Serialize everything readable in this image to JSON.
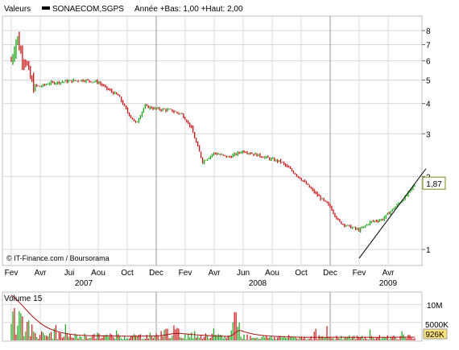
{
  "colors": {
    "background": "#ffffff",
    "frame": "#bfbfbf",
    "grid": "#d9d9d9",
    "year_separator": "#9a9a9a",
    "up_candle": "#1aa51a",
    "down_candle": "#cc1111",
    "trendline": "#000000",
    "volume_ma": "#a31313",
    "last_price_border": "#7a8a1a",
    "last_volume_bg": "#ffe27a"
  },
  "header": {
    "section_label": "Valeurs",
    "series_name": "SONAECOM,SGPS",
    "series_desc": "Année +Bas: 1,00 +Haut: 2,00"
  },
  "credit": "© IT-Finance.com / Boursorama",
  "last_price_label": "1,87",
  "volume_panel": {
    "title": "Volume 15",
    "ticks": [
      "10M",
      "5000K",
      "926K"
    ],
    "last_volume_label": "926K"
  },
  "chart_data": {
    "type": "candlestick",
    "title": "",
    "x_month_labels": [
      "Fev",
      "Avr",
      "Jui",
      "Aou",
      "Oct",
      "Dec",
      "Fev",
      "Avr",
      "Jun",
      "Aou",
      "Oct",
      "Dec",
      "Fev",
      "Avr"
    ],
    "x_year_labels": [
      "2007",
      "2008",
      "2009"
    ],
    "y_tick_labels": [
      "1",
      "2",
      "3",
      "4",
      "5",
      "6",
      "7",
      "8"
    ],
    "ylim": [
      0.7,
      8.6
    ],
    "y_scale": "log",
    "grid": true,
    "price_series": {
      "name": "SONAECOM,SGPS",
      "months": [
        0,
        0.2,
        0.35,
        0.5,
        0.6,
        0.75,
        1,
        1.3,
        1.6,
        2,
        2.5,
        3,
        3.3,
        3.7,
        4,
        4.3,
        4.6,
        5,
        5.5,
        5.9,
        6.2,
        6.6,
        7,
        7.5,
        8,
        8.5,
        9,
        9.3,
        9.7,
        10,
        10.5,
        11,
        11.3,
        11.6,
        12,
        12.4,
        12.8,
        13.2,
        13.6,
        13.95
      ],
      "close": [
        6.0,
        7.6,
        6.3,
        6.1,
        5.3,
        4.75,
        4.7,
        4.85,
        4.9,
        4.95,
        5.0,
        4.9,
        4.6,
        4.3,
        3.7,
        3.3,
        3.9,
        3.8,
        3.75,
        3.6,
        3.2,
        2.3,
        2.5,
        2.4,
        2.55,
        2.45,
        2.35,
        2.3,
        2.1,
        1.95,
        1.7,
        1.5,
        1.3,
        1.25,
        1.2,
        1.3,
        1.33,
        1.48,
        1.65,
        1.87
      ]
    },
    "last_price": 1.87,
    "trendline": {
      "from_month": 12.0,
      "to_month": 14.3,
      "from_price": 0.92,
      "to_price": 2.15
    },
    "volume_series": {
      "name": "Volume 15",
      "months": [
        0,
        0.1,
        0.2,
        0.35,
        0.5,
        1,
        2,
        3,
        4,
        5,
        5.5,
        6,
        7,
        7.5,
        7.75,
        8,
        9,
        10,
        11,
        12,
        13,
        13.9
      ],
      "volume": [
        12.5,
        9.0,
        7.0,
        6.0,
        4.0,
        1.5,
        1.1,
        1.2,
        1.1,
        1.3,
        2.6,
        1.4,
        1.0,
        1.0,
        6.1,
        1.0,
        0.9,
        0.8,
        0.9,
        0.8,
        0.9,
        0.926
      ]
    },
    "volume_ticks": [
      10.0,
      5.0,
      0.926
    ],
    "volume_ylim": [
      0,
      13
    ]
  }
}
